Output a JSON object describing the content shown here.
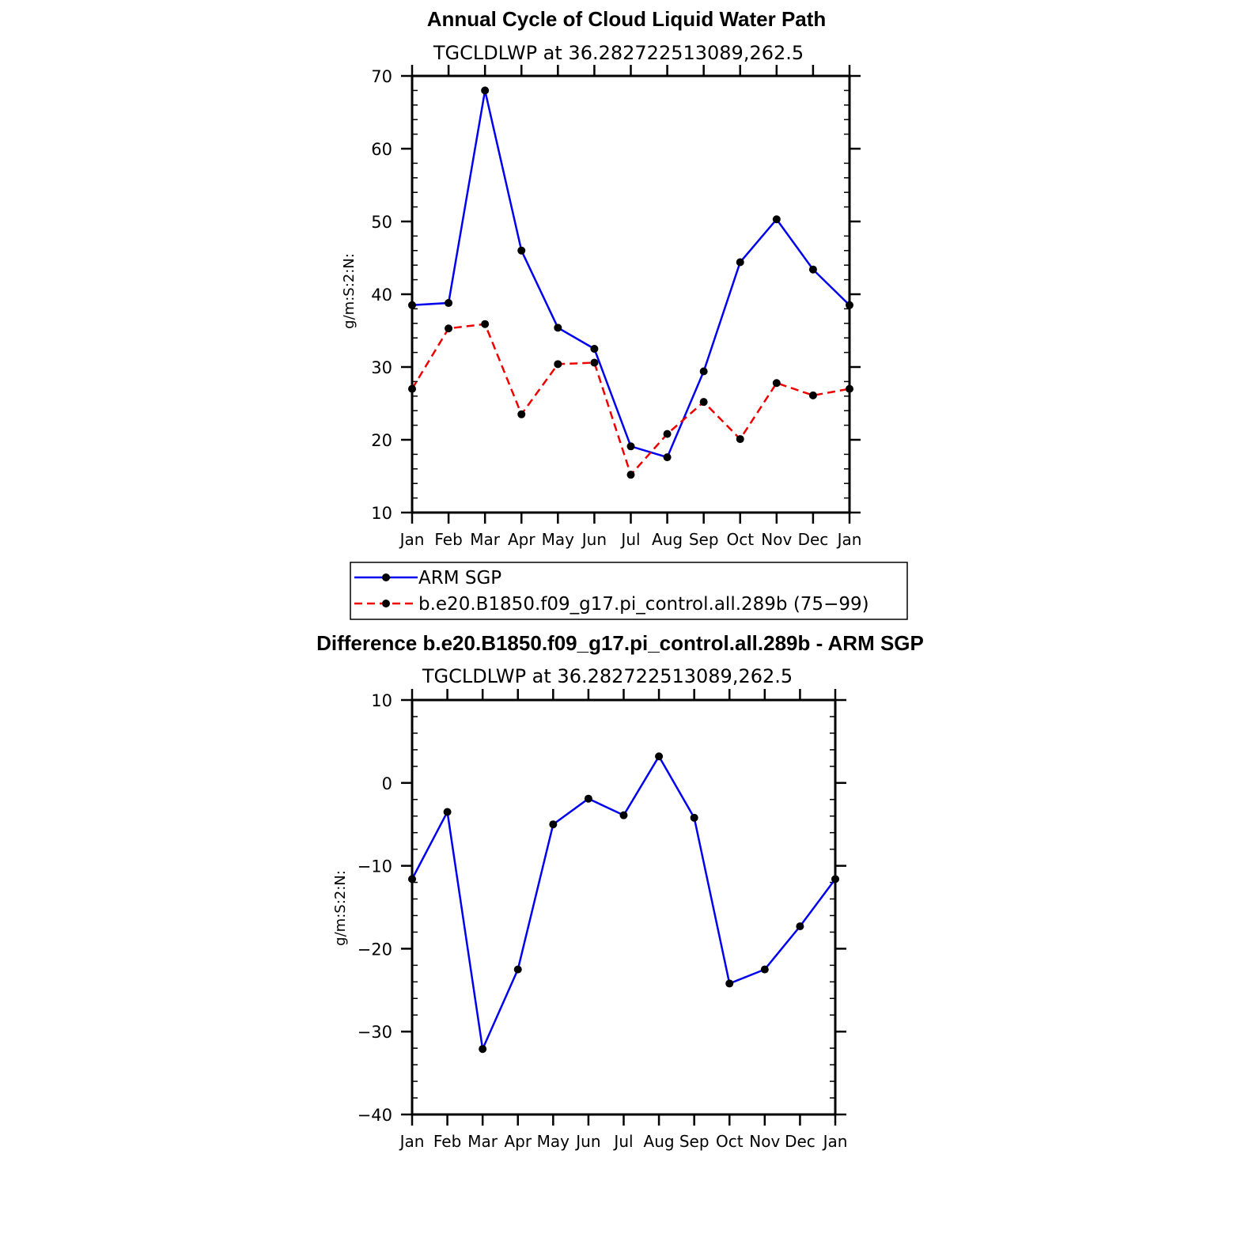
{
  "chart_data": [
    {
      "type": "line",
      "title": "Annual Cycle of Cloud Liquid Water Path",
      "subtitle": "TGCLDLWP  at  36.282722513089,262.5",
      "ylabel": "g/m:S:2:N:",
      "xlabel": "",
      "ylim": [
        10,
        70
      ],
      "yticks": [
        "10",
        "20",
        "30",
        "40",
        "50",
        "60",
        "70"
      ],
      "categories": [
        "Jan",
        "Feb",
        "Mar",
        "Apr",
        "May",
        "Jun",
        "Jul",
        "Aug",
        "Sep",
        "Oct",
        "Nov",
        "Dec",
        "Jan"
      ],
      "series": [
        {
          "name": "ARM  SGP",
          "color": "#0000ee",
          "dash": "solid",
          "values": [
            38.5,
            38.8,
            68.0,
            46.0,
            35.4,
            32.5,
            19.1,
            17.6,
            29.4,
            44.4,
            50.3,
            43.4,
            38.5
          ]
        },
        {
          "name": "b.e20.B1850.f09_g17.pi_control.all.289b  (75−99)",
          "color": "#ee0000",
          "dash": "dashed",
          "values": [
            27.0,
            35.3,
            35.9,
            23.5,
            30.4,
            30.6,
            15.2,
            20.8,
            25.2,
            20.1,
            27.8,
            26.1,
            27.0
          ]
        }
      ],
      "legend": "below"
    },
    {
      "type": "line",
      "title": "Difference b.e20.B1850.f09_g17.pi_control.all.289b - ARM SGP",
      "subtitle": "TGCLDLWP  at  36.282722513089,262.5",
      "ylabel": "g/m:S:2:N:",
      "xlabel": "",
      "ylim": [
        -40,
        10
      ],
      "yticks": [
        "−40",
        "−30",
        "−20",
        "−10",
        "0",
        "10"
      ],
      "categories": [
        "Jan",
        "Feb",
        "Mar",
        "Apr",
        "May",
        "Jun",
        "Jul",
        "Aug",
        "Sep",
        "Oct",
        "Nov",
        "Dec",
        "Jan"
      ],
      "series": [
        {
          "name": "Difference",
          "color": "#0000ee",
          "dash": "solid",
          "values": [
            -11.6,
            -3.5,
            -32.1,
            -22.5,
            -5.0,
            -1.9,
            -3.9,
            3.2,
            -4.2,
            -24.2,
            -22.5,
            -17.3,
            -11.6
          ]
        }
      ]
    }
  ]
}
